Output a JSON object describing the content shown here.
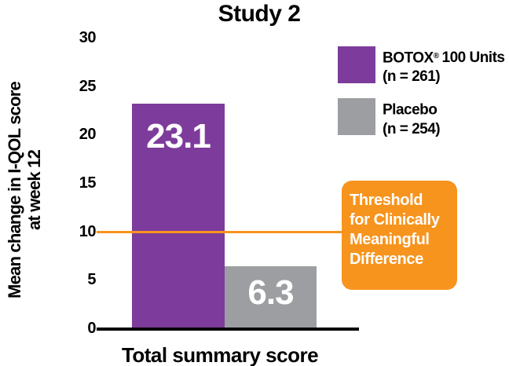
{
  "title": "Study 2",
  "legend": {
    "items": [
      {
        "brand": "BOTOX",
        "reg_mark": "®",
        "rest": "100 Units",
        "n": "(n = 261)",
        "color": "#7D3C9B"
      },
      {
        "brand": "Placebo",
        "reg_mark": "",
        "rest": "",
        "n": "(n = 254)",
        "color": "#9C9EA1"
      }
    ]
  },
  "chart_data": {
    "type": "bar",
    "title": "Study 2",
    "categories": [
      "Total summary score"
    ],
    "series": [
      {
        "name": "BOTOX® 100 Units (n = 261)",
        "values": [
          23.1
        ],
        "color": "#7D3C9B"
      },
      {
        "name": "Placebo (n = 254)",
        "values": [
          6.3
        ],
        "color": "#9C9EA1"
      }
    ],
    "value_labels": [
      "23.1",
      "6.3"
    ],
    "value_label_color": "#FFFFFF",
    "xlabel": "Total summary score",
    "ylabel": "Mean change in I-QOL score at week 12",
    "ylabel_lines": [
      "Mean change in I-QOL score",
      "at week 12"
    ],
    "ylim": [
      0,
      30
    ],
    "yticks": [
      0,
      5,
      10,
      15,
      20,
      25,
      30
    ],
    "grid": false,
    "legend_position": "top-right",
    "axis_color": "#000000",
    "annotations": [
      {
        "type": "threshold_line",
        "y": 10,
        "color": "#F7941E",
        "label": "Threshold for Clinically Meaningful Difference",
        "label_lines": [
          "Threshold",
          "for Clinically",
          "Meaningful",
          "Difference"
        ],
        "label_bg": "#F7941E",
        "label_text_color": "#FFFFFF"
      }
    ]
  }
}
